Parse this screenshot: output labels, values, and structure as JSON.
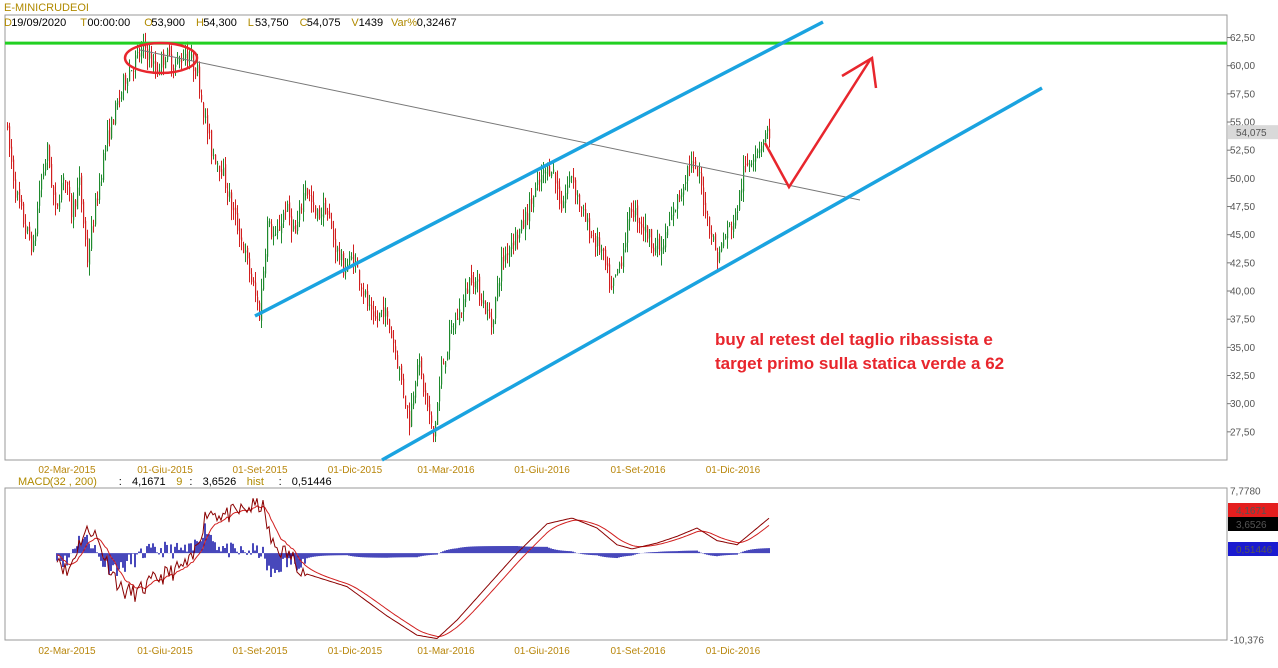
{
  "header": {
    "symbol": "E-MINICRUDEOI",
    "fields": [
      {
        "key": "D",
        "value": "19/09/2020"
      },
      {
        "key": "T",
        "value": "00:00:00"
      },
      {
        "key": "O",
        "value": "53,900"
      },
      {
        "key": "H",
        "value": "54,300"
      },
      {
        "key": "L",
        "value": "53,750"
      },
      {
        "key": "C",
        "value": "54,075"
      },
      {
        "key": "V",
        "value": "1439"
      },
      {
        "key": "Var%",
        "value": "0,32467"
      }
    ]
  },
  "annotation_lines": [
    "buy al retest del taglio ribassista e",
    "target primo sulla statica verde a 62"
  ],
  "colors": {
    "up_candle": "#1f8a2e",
    "down_candle": "#d11f1f",
    "channel": "#1aa3e0",
    "resistance": "#22d022",
    "trendline": "#777777",
    "annotation": "#e8262d",
    "macd_line": "#8b0000",
    "signal_line": "#d11f1f",
    "hist": "#1a1aaa"
  },
  "chart_data": [
    {
      "type": "candlestick",
      "title": "",
      "ylim": [
        25.0,
        64.5
      ],
      "y_ticks": [
        "62,50",
        "60,00",
        "57,50",
        "55,00",
        "52,50",
        "50,00",
        "47,50",
        "45,00",
        "42,50",
        "40,00",
        "37,50",
        "35,00",
        "32,50",
        "30,00",
        "27,50"
      ],
      "x_ticks": [
        "02-Mar-2015",
        "01-Giu-2015",
        "01-Set-2015",
        "01-Dic-2015",
        "01-Mar-2016",
        "01-Giu-2016",
        "01-Set-2016",
        "01-Dic-2016"
      ],
      "last_value_label": "54,075",
      "price_path": [
        {
          "t": 0,
          "v": 55.0
        },
        {
          "t": 10,
          "v": 49.0
        },
        {
          "t": 20,
          "v": 45.5
        },
        {
          "t": 28,
          "v": 43.8
        },
        {
          "t": 34,
          "v": 49.0
        },
        {
          "t": 42,
          "v": 52.5
        },
        {
          "t": 50,
          "v": 47.0
        },
        {
          "t": 58,
          "v": 50.5
        },
        {
          "t": 66,
          "v": 47.0
        },
        {
          "t": 74,
          "v": 49.5
        },
        {
          "t": 82,
          "v": 42.8
        },
        {
          "t": 90,
          "v": 47.5
        },
        {
          "t": 100,
          "v": 53.0
        },
        {
          "t": 110,
          "v": 56.0
        },
        {
          "t": 120,
          "v": 59.0
        },
        {
          "t": 130,
          "v": 60.5
        },
        {
          "t": 140,
          "v": 61.6
        },
        {
          "t": 150,
          "v": 59.5
        },
        {
          "t": 160,
          "v": 61.0
        },
        {
          "t": 170,
          "v": 60.0
        },
        {
          "t": 180,
          "v": 61.2
        },
        {
          "t": 192,
          "v": 59.5
        },
        {
          "t": 200,
          "v": 55.0
        },
        {
          "t": 206,
          "v": 52.5
        },
        {
          "t": 216,
          "v": 51.0
        },
        {
          "t": 226,
          "v": 47.5
        },
        {
          "t": 236,
          "v": 44.5
        },
        {
          "t": 246,
          "v": 41.0
        },
        {
          "t": 254,
          "v": 38.0
        },
        {
          "t": 262,
          "v": 46.0
        },
        {
          "t": 270,
          "v": 44.5
        },
        {
          "t": 280,
          "v": 47.5
        },
        {
          "t": 290,
          "v": 45.0
        },
        {
          "t": 300,
          "v": 49.5
        },
        {
          "t": 310,
          "v": 46.5
        },
        {
          "t": 320,
          "v": 47.5
        },
        {
          "t": 330,
          "v": 44.0
        },
        {
          "t": 338,
          "v": 42.0
        },
        {
          "t": 348,
          "v": 43.0
        },
        {
          "t": 358,
          "v": 40.0
        },
        {
          "t": 368,
          "v": 37.0
        },
        {
          "t": 378,
          "v": 38.5
        },
        {
          "t": 388,
          "v": 35.5
        },
        {
          "t": 396,
          "v": 32.0
        },
        {
          "t": 404,
          "v": 28.5
        },
        {
          "t": 412,
          "v": 34.0
        },
        {
          "t": 420,
          "v": 30.5
        },
        {
          "t": 428,
          "v": 27.0
        },
        {
          "t": 436,
          "v": 33.0
        },
        {
          "t": 446,
          "v": 36.5
        },
        {
          "t": 456,
          "v": 38.5
        },
        {
          "t": 466,
          "v": 41.5
        },
        {
          "t": 476,
          "v": 39.5
        },
        {
          "t": 486,
          "v": 37.0
        },
        {
          "t": 496,
          "v": 42.5
        },
        {
          "t": 506,
          "v": 44.5
        },
        {
          "t": 516,
          "v": 45.5
        },
        {
          "t": 526,
          "v": 48.0
        },
        {
          "t": 536,
          "v": 50.0
        },
        {
          "t": 546,
          "v": 51.2
        },
        {
          "t": 556,
          "v": 47.5
        },
        {
          "t": 566,
          "v": 50.5
        },
        {
          "t": 576,
          "v": 47.0
        },
        {
          "t": 586,
          "v": 45.0
        },
        {
          "t": 596,
          "v": 43.5
        },
        {
          "t": 606,
          "v": 40.0
        },
        {
          "t": 616,
          "v": 43.0
        },
        {
          "t": 626,
          "v": 47.5
        },
        {
          "t": 636,
          "v": 46.0
        },
        {
          "t": 646,
          "v": 44.5
        },
        {
          "t": 656,
          "v": 43.5
        },
        {
          "t": 664,
          "v": 46.0
        },
        {
          "t": 674,
          "v": 48.5
        },
        {
          "t": 684,
          "v": 51.5
        },
        {
          "t": 694,
          "v": 50.0
        },
        {
          "t": 702,
          "v": 46.5
        },
        {
          "t": 712,
          "v": 43.0
        },
        {
          "t": 720,
          "v": 45.0
        },
        {
          "t": 730,
          "v": 46.5
        },
        {
          "t": 738,
          "v": 50.5
        },
        {
          "t": 746,
          "v": 52.0
        },
        {
          "t": 754,
          "v": 53.0
        },
        {
          "t": 762,
          "v": 54.1
        }
      ],
      "levels": {
        "resistance": 62.0
      }
    },
    {
      "type": "line",
      "name": "MACD",
      "params": "(32 , 200)",
      "macd_value": "4,1671",
      "signal_period": "9",
      "signal_value": "3,6526",
      "hist_label": "hist",
      "hist_value": "0,51446",
      "ylim": [
        -10.376,
        7.778
      ],
      "y_ticks": [
        "7,7780",
        "-10,376"
      ],
      "x_ticks": [
        "02-Mar-2015",
        "01-Giu-2015",
        "01-Set-2015",
        "01-Dic-2015",
        "01-Mar-2016",
        "01-Giu-2016",
        "01-Set-2016",
        "01-Dic-2016"
      ],
      "macd_path": [
        {
          "t": 50,
          "v": 0.0
        },
        {
          "t": 60,
          "v": -2.5
        },
        {
          "t": 75,
          "v": 2.0
        },
        {
          "t": 85,
          "v": 3.0
        },
        {
          "t": 100,
          "v": -1.0
        },
        {
          "t": 115,
          "v": -4.5
        },
        {
          "t": 130,
          "v": -4.8
        },
        {
          "t": 150,
          "v": -3.0
        },
        {
          "t": 170,
          "v": -2.0
        },
        {
          "t": 185,
          "v": -1.0
        },
        {
          "t": 200,
          "v": 5.0
        },
        {
          "t": 220,
          "v": 4.5
        },
        {
          "t": 245,
          "v": 5.5
        },
        {
          "t": 255,
          "v": 5.8
        },
        {
          "t": 265,
          "v": 1.0
        },
        {
          "t": 285,
          "v": -0.5
        },
        {
          "t": 300,
          "v": -2.5
        },
        {
          "t": 340,
          "v": -4.0
        },
        {
          "t": 380,
          "v": -7.5
        },
        {
          "t": 410,
          "v": -9.8
        },
        {
          "t": 430,
          "v": -10.2
        },
        {
          "t": 450,
          "v": -8.0
        },
        {
          "t": 480,
          "v": -4.0
        },
        {
          "t": 510,
          "v": 0.0
        },
        {
          "t": 540,
          "v": 3.5
        },
        {
          "t": 565,
          "v": 4.2
        },
        {
          "t": 590,
          "v": 3.0
        },
        {
          "t": 610,
          "v": 1.0
        },
        {
          "t": 625,
          "v": 0.5
        },
        {
          "t": 650,
          "v": 1.2
        },
        {
          "t": 670,
          "v": 2.0
        },
        {
          "t": 690,
          "v": 3.0
        },
        {
          "t": 710,
          "v": 1.5
        },
        {
          "t": 730,
          "v": 1.0
        },
        {
          "t": 762,
          "v": 4.17
        }
      ]
    }
  ]
}
